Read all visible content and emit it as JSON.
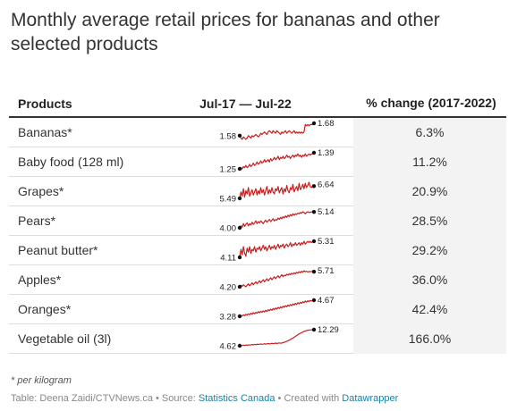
{
  "title": "Monthly average retail prices for bananas and other selected products",
  "header": {
    "products": "Products",
    "range": "Jul-17 — Jul-22",
    "change": "% change (2017-2022)"
  },
  "chart_data": {
    "type": "table",
    "columns": [
      "Products",
      "Jul-17 — Jul-22",
      "% change (2017-2022)"
    ],
    "line_color": "#c71e1d",
    "rows": [
      {
        "product": "Bananas*",
        "start": "1.58",
        "end": "1.68",
        "change": "6.3%",
        "sparkline": [
          1.58,
          1.56,
          1.55,
          1.57,
          1.56,
          1.55,
          1.56,
          1.58,
          1.57,
          1.56,
          1.58,
          1.57,
          1.58,
          1.59,
          1.58,
          1.57,
          1.58,
          1.6,
          1.59,
          1.6,
          1.61,
          1.6,
          1.59,
          1.61,
          1.62,
          1.61,
          1.6,
          1.62,
          1.61,
          1.6,
          1.62,
          1.61,
          1.6,
          1.59,
          1.61,
          1.6,
          1.61,
          1.62,
          1.6,
          1.61,
          1.62,
          1.61,
          1.6,
          1.61,
          1.62,
          1.6,
          1.61,
          1.6,
          1.61,
          1.6,
          1.61,
          1.6,
          1.61,
          1.67,
          1.66,
          1.67,
          1.66,
          1.67,
          1.67,
          1.67,
          1.68
        ]
      },
      {
        "product": "Baby food (128 ml)",
        "start": "1.25",
        "end": "1.39",
        "change": "11.2%",
        "sparkline": [
          1.25,
          1.26,
          1.25,
          1.27,
          1.26,
          1.28,
          1.26,
          1.27,
          1.29,
          1.27,
          1.28,
          1.3,
          1.28,
          1.29,
          1.31,
          1.29,
          1.3,
          1.32,
          1.3,
          1.31,
          1.33,
          1.31,
          1.32,
          1.33,
          1.31,
          1.34,
          1.32,
          1.33,
          1.35,
          1.33,
          1.34,
          1.36,
          1.33,
          1.35,
          1.34,
          1.36,
          1.34,
          1.35,
          1.37,
          1.35,
          1.36,
          1.34,
          1.36,
          1.37,
          1.35,
          1.37,
          1.36,
          1.38,
          1.36,
          1.37,
          1.35,
          1.37,
          1.36,
          1.38,
          1.36,
          1.37,
          1.38,
          1.37,
          1.38,
          1.38,
          1.39
        ]
      },
      {
        "product": "Grapes*",
        "start": "5.49",
        "end": "6.64",
        "change": "20.9%",
        "sparkline": [
          5.49,
          6.1,
          5.7,
          6.4,
          5.6,
          6.2,
          5.9,
          6.5,
          5.7,
          6.0,
          6.3,
          5.8,
          6.1,
          6.4,
          5.8,
          6.2,
          5.9,
          6.5,
          6.0,
          6.3,
          5.8,
          6.2,
          6.6,
          5.9,
          6.3,
          6.0,
          6.5,
          6.1,
          5.9,
          6.4,
          6.2,
          6.6,
          6.0,
          6.3,
          6.5,
          5.9,
          6.4,
          6.1,
          6.7,
          6.2,
          6.0,
          6.5,
          6.3,
          6.8,
          6.1,
          6.4,
          6.6,
          6.2,
          6.9,
          6.3,
          6.5,
          6.8,
          6.4,
          6.9,
          6.5,
          6.7,
          7.0,
          6.6,
          6.5,
          6.7,
          6.64
        ]
      },
      {
        "product": "Pears*",
        "start": "4.00",
        "end": "5.14",
        "change": "28.5%",
        "sparkline": [
          4.0,
          4.15,
          4.05,
          4.3,
          4.1,
          4.25,
          4.35,
          4.15,
          4.3,
          4.2,
          4.4,
          4.25,
          4.35,
          4.5,
          4.3,
          4.45,
          4.35,
          4.5,
          4.4,
          4.3,
          4.45,
          4.55,
          4.4,
          4.5,
          4.6,
          4.45,
          4.55,
          4.65,
          4.5,
          4.6,
          4.55,
          4.7,
          4.6,
          4.75,
          4.65,
          4.8,
          4.7,
          4.85,
          4.75,
          4.9,
          4.8,
          4.95,
          4.85,
          5.0,
          4.9,
          5.0,
          4.95,
          5.05,
          5.0,
          5.1,
          5.05,
          5.15,
          5.1,
          5.0,
          5.1,
          5.15,
          5.1,
          5.12,
          5.14,
          5.15,
          5.14
        ]
      },
      {
        "product": "Peanut butter*",
        "start": "4.11",
        "end": "5.31",
        "change": "29.2%",
        "sparkline": [
          4.11,
          4.7,
          4.3,
          4.9,
          4.4,
          4.2,
          4.8,
          4.5,
          4.9,
          4.4,
          4.7,
          4.6,
          4.9,
          4.5,
          4.8,
          4.7,
          4.9,
          4.6,
          4.8,
          5.0,
          4.7,
          4.9,
          4.6,
          4.8,
          5.0,
          4.7,
          4.9,
          4.8,
          5.0,
          4.7,
          4.9,
          5.1,
          4.8,
          5.0,
          4.9,
          5.1,
          4.8,
          5.0,
          5.1,
          4.9,
          5.0,
          5.2,
          4.9,
          5.1,
          5.0,
          5.2,
          5.0,
          5.1,
          5.2,
          5.0,
          5.2,
          5.1,
          5.3,
          5.1,
          5.2,
          5.3,
          5.2,
          5.3,
          5.2,
          5.3,
          5.31
        ]
      },
      {
        "product": "Apples*",
        "start": "4.20",
        "end": "5.71",
        "change": "36.0%",
        "sparkline": [
          4.2,
          4.35,
          4.25,
          4.4,
          4.3,
          4.2,
          4.35,
          4.5,
          4.3,
          4.45,
          4.6,
          4.4,
          4.55,
          4.7,
          4.5,
          4.65,
          4.8,
          4.6,
          4.75,
          4.9,
          4.7,
          4.85,
          5.0,
          4.8,
          4.95,
          5.1,
          4.9,
          5.05,
          5.2,
          5.0,
          5.15,
          5.3,
          5.1,
          5.25,
          5.4,
          5.2,
          5.35,
          5.3,
          5.45,
          5.35,
          5.5,
          5.4,
          5.55,
          5.45,
          5.6,
          5.5,
          5.65,
          5.55,
          5.7,
          5.6,
          5.75,
          5.65,
          5.8,
          5.7,
          5.75,
          5.68,
          5.72,
          5.7,
          5.73,
          5.7,
          5.71
        ]
      },
      {
        "product": "Oranges*",
        "start": "3.28",
        "end": "4.67",
        "change": "42.4%",
        "sparkline": [
          3.28,
          3.35,
          3.3,
          3.4,
          3.33,
          3.45,
          3.38,
          3.5,
          3.42,
          3.55,
          3.45,
          3.6,
          3.5,
          3.62,
          3.55,
          3.68,
          3.58,
          3.72,
          3.62,
          3.75,
          3.65,
          3.8,
          3.7,
          3.85,
          3.75,
          3.9,
          3.8,
          3.95,
          3.85,
          4.0,
          3.9,
          4.05,
          3.95,
          4.1,
          4.0,
          4.15,
          4.05,
          4.2,
          4.1,
          4.25,
          4.15,
          4.3,
          4.2,
          4.35,
          4.25,
          4.4,
          4.3,
          4.45,
          4.35,
          4.5,
          4.4,
          4.55,
          4.45,
          4.6,
          4.5,
          4.62,
          4.55,
          4.65,
          4.6,
          4.65,
          4.67
        ]
      },
      {
        "product": "Vegetable oil (3l)",
        "start": "4.62",
        "end": "12.29",
        "change": "166.0%",
        "sparkline": [
          4.62,
          4.8,
          4.7,
          4.9,
          4.75,
          5.0,
          4.85,
          5.1,
          4.95,
          5.0,
          5.2,
          5.05,
          5.3,
          5.15,
          5.4,
          5.25,
          5.35,
          5.5,
          5.3,
          5.45,
          5.6,
          5.4,
          5.55,
          5.7,
          5.5,
          5.65,
          5.8,
          5.6,
          5.75,
          5.9,
          5.7,
          5.85,
          6.0,
          5.8,
          5.95,
          6.1,
          6.3,
          6.5,
          6.8,
          7.0,
          7.3,
          7.6,
          8.0,
          8.3,
          8.7,
          9.1,
          9.5,
          9.9,
          10.3,
          10.6,
          10.9,
          11.2,
          11.5,
          11.7,
          11.9,
          12.0,
          12.1,
          12.15,
          12.2,
          12.25,
          12.29
        ]
      }
    ]
  },
  "footnote": "* per kilogram",
  "footer": {
    "prefix": "Table: Deena Zaidi/CTVNews.ca • Source: ",
    "source": "Statistics Canada",
    "middle": " • Created with ",
    "tool": "Datawrapper"
  }
}
